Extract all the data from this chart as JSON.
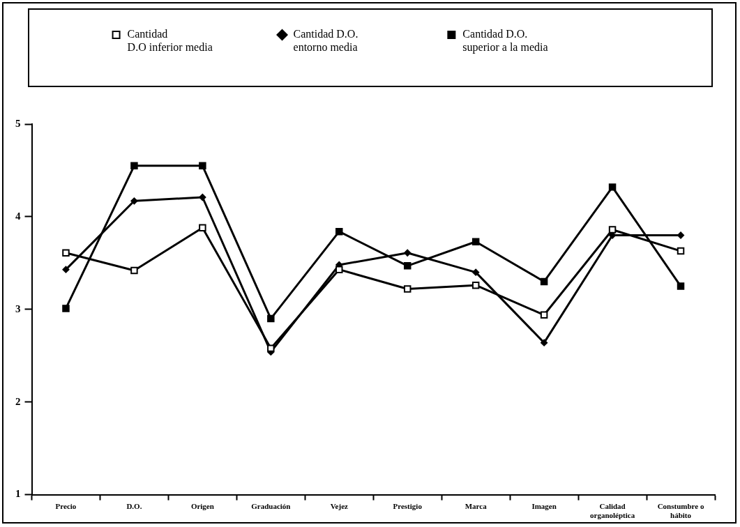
{
  "chart_data": {
    "type": "line",
    "categories": [
      "Precio",
      "D.O.",
      "Origen",
      "Graduación",
      "Vejez",
      "Prestigio",
      "Marca",
      "Imagen",
      "Calidad organoléptica",
      "Constumbre o hábito"
    ],
    "series": [
      {
        "name": "Cantidad\nD.O inferior media",
        "color": "#000000",
        "marker": "square",
        "values": [
          3.61,
          3.42,
          3.88,
          2.58,
          3.43,
          3.22,
          3.26,
          2.94,
          3.86,
          3.63
        ]
      },
      {
        "name": "Cantidad D.O.\nentorno media",
        "color": "#000000",
        "marker": "diamond",
        "values": [
          3.43,
          4.17,
          4.21,
          2.54,
          3.48,
          3.61,
          3.4,
          2.64,
          3.8,
          3.8
        ]
      },
      {
        "name": "Cantidad D.O.\nsuperior a la media",
        "color": "#000000",
        "marker": "square",
        "values": [
          3.01,
          4.55,
          4.55,
          2.9,
          3.84,
          3.47,
          3.73,
          3.3,
          4.32,
          3.25
        ]
      }
    ],
    "ylim": [
      1,
      5
    ],
    "yticks": [
      1,
      2,
      3,
      4,
      5
    ],
    "grid": false,
    "legend": "top"
  }
}
